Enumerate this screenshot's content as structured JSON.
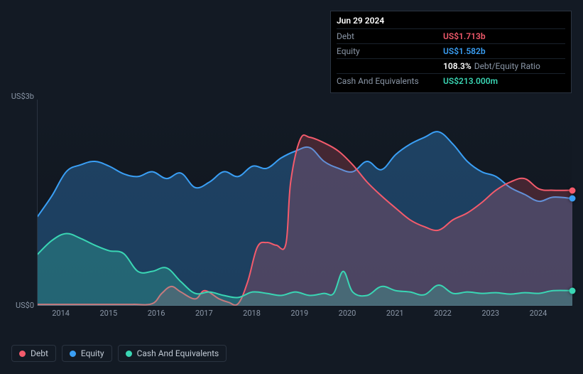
{
  "tooltip": {
    "date": "Jun 29 2024",
    "rows": [
      {
        "label": "Debt",
        "value": "US$1.713b",
        "color": "#f45b6c"
      },
      {
        "label": "Equity",
        "value": "US$1.582b",
        "color": "#3a9ff5"
      },
      {
        "label": "",
        "value": "108.3%",
        "suffix": "Debt/Equity Ratio",
        "color": "#ffffff"
      },
      {
        "label": "Cash And Equivalents",
        "value": "US$213.000m",
        "color": "#3ad6b4"
      }
    ]
  },
  "chart": {
    "type": "area",
    "background_color": "#131a24",
    "y_axis": {
      "top_label": "US$3b",
      "bottom_label": "US$0",
      "min": 0,
      "max": 3.0
    },
    "x_axis": {
      "ticks": [
        "2014",
        "2015",
        "2016",
        "2017",
        "2018",
        "2019",
        "2020",
        "2021",
        "2022",
        "2023",
        "2024"
      ],
      "min": 2013.5,
      "max": 2024.7
    },
    "series": [
      {
        "name": "Equity",
        "color": "#3a9ff5",
        "fill_opacity": 0.3,
        "line_width": 2,
        "z": 1,
        "points": [
          [
            2013.5,
            1.3
          ],
          [
            2013.8,
            1.6
          ],
          [
            2014.1,
            1.95
          ],
          [
            2014.4,
            2.05
          ],
          [
            2014.7,
            2.1
          ],
          [
            2015.0,
            2.03
          ],
          [
            2015.3,
            1.92
          ],
          [
            2015.6,
            1.88
          ],
          [
            2015.9,
            1.95
          ],
          [
            2016.2,
            1.85
          ],
          [
            2016.5,
            1.93
          ],
          [
            2016.8,
            1.72
          ],
          [
            2017.1,
            1.8
          ],
          [
            2017.4,
            1.95
          ],
          [
            2017.7,
            1.88
          ],
          [
            2018.0,
            2.03
          ],
          [
            2018.3,
            2.0
          ],
          [
            2018.6,
            2.15
          ],
          [
            2018.9,
            2.25
          ],
          [
            2019.2,
            2.3
          ],
          [
            2019.5,
            2.1
          ],
          [
            2019.8,
            2.0
          ],
          [
            2020.1,
            1.95
          ],
          [
            2020.4,
            2.1
          ],
          [
            2020.7,
            1.98
          ],
          [
            2021.0,
            2.2
          ],
          [
            2021.3,
            2.35
          ],
          [
            2021.6,
            2.45
          ],
          [
            2021.9,
            2.53
          ],
          [
            2022.2,
            2.35
          ],
          [
            2022.5,
            2.1
          ],
          [
            2022.8,
            1.95
          ],
          [
            2023.1,
            1.88
          ],
          [
            2023.4,
            1.72
          ],
          [
            2023.7,
            1.62
          ],
          [
            2024.0,
            1.52
          ],
          [
            2024.3,
            1.58
          ],
          [
            2024.7,
            1.56
          ]
        ],
        "marker_end": {
          "x": 2024.7,
          "y": 1.56
        }
      },
      {
        "name": "Debt",
        "color": "#f45b6c",
        "fill_opacity": 0.22,
        "line_width": 2,
        "z": 2,
        "points": [
          [
            2013.5,
            0.02
          ],
          [
            2014.0,
            0.02
          ],
          [
            2014.5,
            0.02
          ],
          [
            2015.0,
            0.02
          ],
          [
            2015.5,
            0.02
          ],
          [
            2015.9,
            0.03
          ],
          [
            2016.1,
            0.18
          ],
          [
            2016.3,
            0.28
          ],
          [
            2016.5,
            0.2
          ],
          [
            2016.8,
            0.1
          ],
          [
            2017.0,
            0.22
          ],
          [
            2017.3,
            0.1
          ],
          [
            2017.5,
            0.05
          ],
          [
            2017.7,
            0.03
          ],
          [
            2017.9,
            0.35
          ],
          [
            2018.1,
            0.85
          ],
          [
            2018.3,
            0.92
          ],
          [
            2018.5,
            0.88
          ],
          [
            2018.7,
            0.9
          ],
          [
            2018.8,
            1.8
          ],
          [
            2019.0,
            2.42
          ],
          [
            2019.2,
            2.45
          ],
          [
            2019.5,
            2.37
          ],
          [
            2019.8,
            2.25
          ],
          [
            2020.1,
            2.05
          ],
          [
            2020.4,
            1.8
          ],
          [
            2020.7,
            1.6
          ],
          [
            2021.0,
            1.42
          ],
          [
            2021.3,
            1.25
          ],
          [
            2021.6,
            1.15
          ],
          [
            2021.9,
            1.1
          ],
          [
            2022.2,
            1.25
          ],
          [
            2022.5,
            1.35
          ],
          [
            2022.8,
            1.5
          ],
          [
            2023.1,
            1.68
          ],
          [
            2023.4,
            1.8
          ],
          [
            2023.7,
            1.85
          ],
          [
            2024.0,
            1.7
          ],
          [
            2024.3,
            1.68
          ],
          [
            2024.7,
            1.68
          ]
        ],
        "marker_end": {
          "x": 2024.7,
          "y": 1.68
        }
      },
      {
        "name": "Cash And Equivalents",
        "color": "#3ad6b4",
        "fill_opacity": 0.25,
        "line_width": 2,
        "z": 3,
        "points": [
          [
            2013.5,
            0.75
          ],
          [
            2013.8,
            0.95
          ],
          [
            2014.1,
            1.05
          ],
          [
            2014.4,
            0.98
          ],
          [
            2014.7,
            0.88
          ],
          [
            2015.0,
            0.8
          ],
          [
            2015.3,
            0.76
          ],
          [
            2015.6,
            0.5
          ],
          [
            2015.9,
            0.5
          ],
          [
            2016.2,
            0.55
          ],
          [
            2016.5,
            0.35
          ],
          [
            2016.8,
            0.18
          ],
          [
            2017.1,
            0.2
          ],
          [
            2017.4,
            0.15
          ],
          [
            2017.7,
            0.12
          ],
          [
            2018.0,
            0.2
          ],
          [
            2018.3,
            0.18
          ],
          [
            2018.6,
            0.15
          ],
          [
            2018.9,
            0.2
          ],
          [
            2019.2,
            0.15
          ],
          [
            2019.5,
            0.18
          ],
          [
            2019.7,
            0.18
          ],
          [
            2019.9,
            0.5
          ],
          [
            2020.1,
            0.2
          ],
          [
            2020.4,
            0.15
          ],
          [
            2020.7,
            0.28
          ],
          [
            2021.0,
            0.22
          ],
          [
            2021.3,
            0.2
          ],
          [
            2021.6,
            0.16
          ],
          [
            2021.9,
            0.3
          ],
          [
            2022.2,
            0.18
          ],
          [
            2022.5,
            0.2
          ],
          [
            2022.8,
            0.18
          ],
          [
            2023.1,
            0.19
          ],
          [
            2023.4,
            0.17
          ],
          [
            2023.7,
            0.19
          ],
          [
            2024.0,
            0.18
          ],
          [
            2024.3,
            0.22
          ],
          [
            2024.7,
            0.22
          ]
        ],
        "marker_end": {
          "x": 2024.7,
          "y": 0.22
        }
      }
    ],
    "legend": [
      {
        "label": "Debt",
        "color": "#f45b6c"
      },
      {
        "label": "Equity",
        "color": "#3a9ff5"
      },
      {
        "label": "Cash And Equivalents",
        "color": "#3ad6b4"
      }
    ]
  }
}
